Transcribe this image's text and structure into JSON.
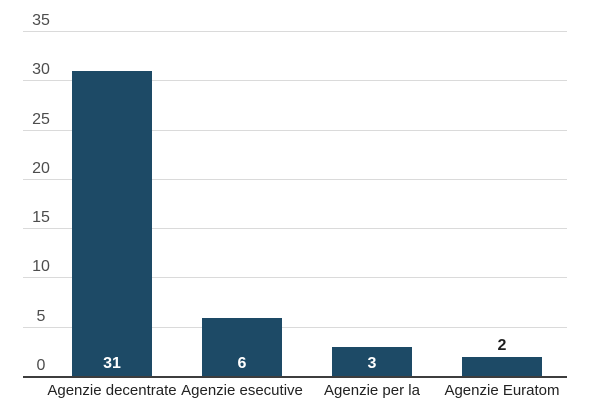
{
  "chart_data": {
    "type": "bar",
    "categories": [
      "Agenzie decentrate",
      "Agenzie esecutive",
      "Agenzie per la",
      "Agenzie Euratom"
    ],
    "values": [
      31,
      6,
      3,
      2
    ],
    "value_labels": [
      "31",
      "6",
      "3",
      "2"
    ],
    "value_label_positions": [
      "inside",
      "inside",
      "inside",
      "above"
    ],
    "yticks": [
      0,
      5,
      10,
      15,
      20,
      25,
      30,
      35
    ],
    "ylim": [
      0,
      35
    ],
    "grid": true,
    "legend": "none",
    "colors": {
      "bar": "#1d4a66",
      "gridline": "#dadada",
      "baseline": "#3d3d3d",
      "tick_label": "#4d4d4d",
      "category_label": "#222222",
      "value_label_inside": "#ffffff",
      "value_label_above": "#1f1f1f",
      "background": "#ffffff"
    }
  }
}
